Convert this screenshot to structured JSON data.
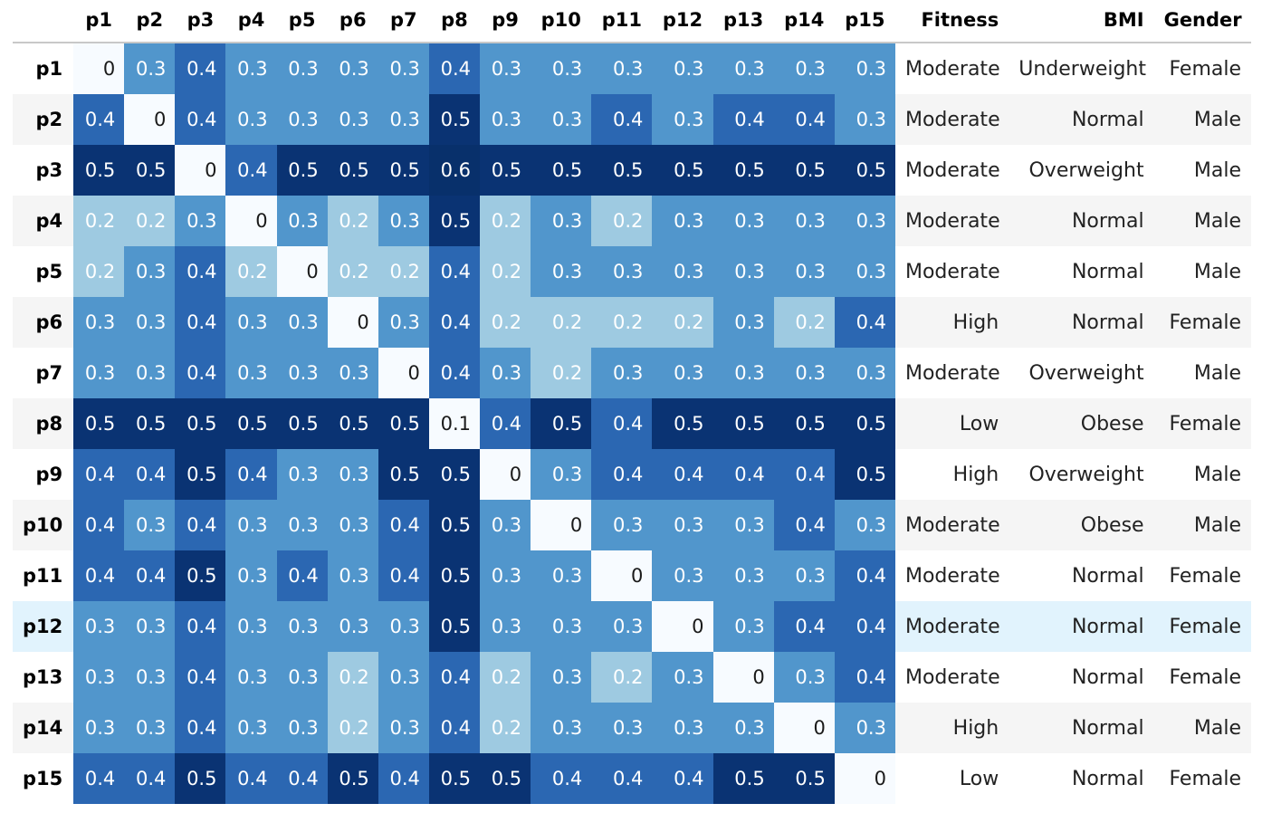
{
  "colors": {
    "0": "#f7fbff",
    "0.1": "#f7fbff",
    "0.2": "#9ecae1",
    "0.3": "#5196cc",
    "0.4": "#2b67b2",
    "0.5": "#0a3373",
    "0.6": "#08306b",
    "text_light": "#ffffff",
    "text_dark": "#1a1a1a",
    "row_stripe": "#f5f5f5",
    "row_hover": "#e1f3fd"
  },
  "chart_data": {
    "type": "heatmap",
    "columns": [
      "p1",
      "p2",
      "p3",
      "p4",
      "p5",
      "p6",
      "p7",
      "p8",
      "p9",
      "p10",
      "p11",
      "p12",
      "p13",
      "p14",
      "p15"
    ],
    "extra_columns": [
      "Fitness",
      "BMI",
      "Gender"
    ],
    "rows": [
      {
        "label": "p1",
        "values": [
          0,
          0.3,
          0.4,
          0.3,
          0.3,
          0.3,
          0.3,
          0.4,
          0.3,
          0.3,
          0.3,
          0.3,
          0.3,
          0.3,
          0.3
        ],
        "fitness": "Moderate",
        "bmi": "Underweight",
        "gender": "Female"
      },
      {
        "label": "p2",
        "values": [
          0.4,
          0,
          0.4,
          0.3,
          0.3,
          0.3,
          0.3,
          0.5,
          0.3,
          0.3,
          0.4,
          0.3,
          0.4,
          0.4,
          0.3
        ],
        "fitness": "Moderate",
        "bmi": "Normal",
        "gender": "Male"
      },
      {
        "label": "p3",
        "values": [
          0.5,
          0.5,
          0,
          0.4,
          0.5,
          0.5,
          0.5,
          0.6,
          0.5,
          0.5,
          0.5,
          0.5,
          0.5,
          0.5,
          0.5
        ],
        "fitness": "Moderate",
        "bmi": "Overweight",
        "gender": "Male"
      },
      {
        "label": "p4",
        "values": [
          0.2,
          0.2,
          0.3,
          0,
          0.3,
          0.2,
          0.3,
          0.5,
          0.2,
          0.3,
          0.2,
          0.3,
          0.3,
          0.3,
          0.3
        ],
        "fitness": "Moderate",
        "bmi": "Normal",
        "gender": "Male"
      },
      {
        "label": "p5",
        "values": [
          0.2,
          0.3,
          0.4,
          0.2,
          0,
          0.2,
          0.2,
          0.4,
          0.2,
          0.3,
          0.3,
          0.3,
          0.3,
          0.3,
          0.3
        ],
        "fitness": "Moderate",
        "bmi": "Normal",
        "gender": "Male"
      },
      {
        "label": "p6",
        "values": [
          0.3,
          0.3,
          0.4,
          0.3,
          0.3,
          0,
          0.3,
          0.4,
          0.2,
          0.2,
          0.2,
          0.2,
          0.3,
          0.2,
          0.4
        ],
        "fitness": "High",
        "bmi": "Normal",
        "gender": "Female"
      },
      {
        "label": "p7",
        "values": [
          0.3,
          0.3,
          0.4,
          0.3,
          0.3,
          0.3,
          0,
          0.4,
          0.3,
          0.2,
          0.3,
          0.3,
          0.3,
          0.3,
          0.3
        ],
        "fitness": "Moderate",
        "bmi": "Overweight",
        "gender": "Male"
      },
      {
        "label": "p8",
        "values": [
          0.5,
          0.5,
          0.5,
          0.5,
          0.5,
          0.5,
          0.5,
          0.1,
          0.4,
          0.5,
          0.4,
          0.5,
          0.5,
          0.5,
          0.5
        ],
        "fitness": "Low",
        "bmi": "Obese",
        "gender": "Female"
      },
      {
        "label": "p9",
        "values": [
          0.4,
          0.4,
          0.5,
          0.4,
          0.3,
          0.3,
          0.5,
          0.5,
          0,
          0.3,
          0.4,
          0.4,
          0.4,
          0.4,
          0.5
        ],
        "fitness": "High",
        "bmi": "Overweight",
        "gender": "Male"
      },
      {
        "label": "p10",
        "values": [
          0.4,
          0.3,
          0.4,
          0.3,
          0.3,
          0.3,
          0.4,
          0.5,
          0.3,
          0,
          0.3,
          0.3,
          0.3,
          0.4,
          0.3
        ],
        "fitness": "Moderate",
        "bmi": "Obese",
        "gender": "Male"
      },
      {
        "label": "p11",
        "values": [
          0.4,
          0.4,
          0.5,
          0.3,
          0.4,
          0.3,
          0.4,
          0.5,
          0.3,
          0.3,
          0,
          0.3,
          0.3,
          0.3,
          0.4
        ],
        "fitness": "Moderate",
        "bmi": "Normal",
        "gender": "Female"
      },
      {
        "label": "p12",
        "values": [
          0.3,
          0.3,
          0.4,
          0.3,
          0.3,
          0.3,
          0.3,
          0.5,
          0.3,
          0.3,
          0.3,
          0,
          0.3,
          0.4,
          0.4
        ],
        "fitness": "Moderate",
        "bmi": "Normal",
        "gender": "Female",
        "highlighted": true
      },
      {
        "label": "p13",
        "values": [
          0.3,
          0.3,
          0.4,
          0.3,
          0.3,
          0.2,
          0.3,
          0.4,
          0.2,
          0.3,
          0.2,
          0.3,
          0,
          0.3,
          0.4
        ],
        "fitness": "Moderate",
        "bmi": "Normal",
        "gender": "Female"
      },
      {
        "label": "p14",
        "values": [
          0.3,
          0.3,
          0.4,
          0.3,
          0.3,
          0.2,
          0.3,
          0.4,
          0.2,
          0.3,
          0.3,
          0.3,
          0.3,
          0,
          0.3
        ],
        "fitness": "High",
        "bmi": "Normal",
        "gender": "Male"
      },
      {
        "label": "p15",
        "values": [
          0.4,
          0.4,
          0.5,
          0.4,
          0.4,
          0.5,
          0.4,
          0.5,
          0.5,
          0.4,
          0.4,
          0.4,
          0.5,
          0.5,
          0
        ],
        "fitness": "Low",
        "bmi": "Normal",
        "gender": "Female"
      }
    ]
  }
}
